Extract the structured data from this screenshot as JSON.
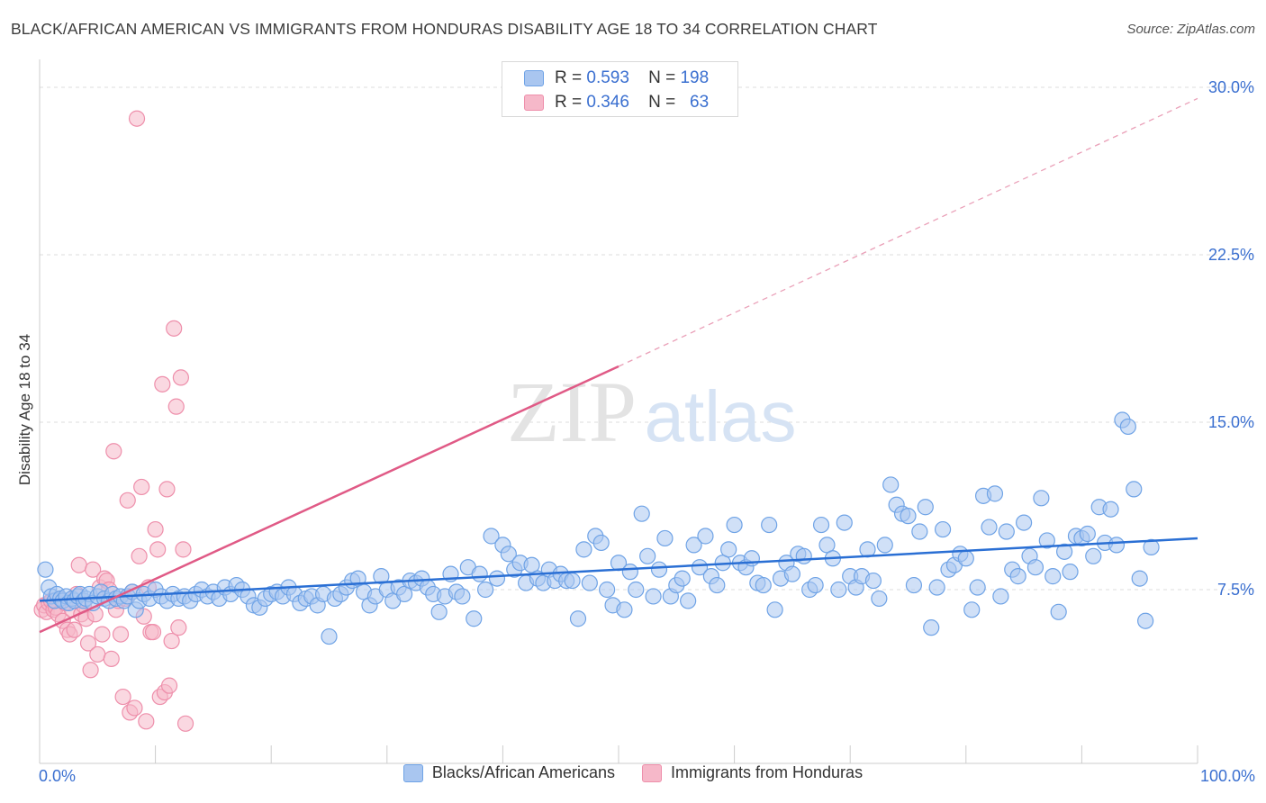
{
  "title": "BLACK/AFRICAN AMERICAN VS IMMIGRANTS FROM HONDURAS DISABILITY AGE 18 TO 34 CORRELATION CHART",
  "source": "Source: ZipAtlas.com",
  "watermark": {
    "zip": "ZIP",
    "atlas": "atlas"
  },
  "legend_top": [
    {
      "r_label": "R =",
      "r_value": "0.593",
      "n_label": "N =",
      "n_value": "198",
      "color": "#a9c6f0"
    },
    {
      "r_label": "R =",
      "r_value": "0.346",
      "n_label": "N =",
      "n_value": "63",
      "color": "#f6b8c9"
    }
  ],
  "chart_data": {
    "type": "scatter",
    "title": "BLACK/AFRICAN AMERICAN VS IMMIGRANTS FROM HONDURAS DISABILITY AGE 18 TO 34 CORRELATION CHART",
    "xlabel": "",
    "ylabel": "Disability Age 18 to 34",
    "xlim": [
      0,
      100
    ],
    "ylim": [
      0,
      31
    ],
    "x_tick_labels": [
      "0.0%",
      "100.0%"
    ],
    "y_ticks": [
      7.5,
      15.0,
      22.5,
      30.0
    ],
    "y_tick_labels": [
      "7.5%",
      "15.0%",
      "22.5%",
      "30.0%"
    ],
    "grid": true,
    "legend_position": "bottom",
    "series": [
      {
        "name": "Blacks/African Americans",
        "color": "#6fa3e6",
        "fill": "#a9c6f0",
        "trendline": {
          "x": [
            0,
            100
          ],
          "y": [
            7.0,
            9.8
          ],
          "color": "#2a6fd4"
        },
        "points": [
          [
            0.5,
            8.4
          ],
          [
            0.8,
            7.6
          ],
          [
            1.0,
            7.2
          ],
          [
            1.3,
            7.0
          ],
          [
            1.5,
            7.3
          ],
          [
            1.8,
            7.1
          ],
          [
            2.0,
            7.0
          ],
          [
            2.3,
            7.2
          ],
          [
            2.5,
            6.9
          ],
          [
            2.8,
            7.1
          ],
          [
            3.0,
            7.0
          ],
          [
            3.3,
            7.2
          ],
          [
            3.5,
            7.3
          ],
          [
            3.8,
            7.0
          ],
          [
            4.0,
            7.1
          ],
          [
            4.3,
            7.3
          ],
          [
            4.6,
            6.9
          ],
          [
            5.0,
            7.2
          ],
          [
            5.3,
            7.4
          ],
          [
            5.6,
            7.1
          ],
          [
            6.0,
            7.0
          ],
          [
            6.3,
            7.3
          ],
          [
            6.6,
            7.1
          ],
          [
            7.0,
            7.2
          ],
          [
            7.3,
            7.0
          ],
          [
            7.6,
            7.2
          ],
          [
            8.0,
            7.4
          ],
          [
            8.3,
            6.6
          ],
          [
            8.6,
            7.0
          ],
          [
            9.0,
            7.3
          ],
          [
            9.5,
            7.1
          ],
          [
            10.0,
            7.5
          ],
          [
            10.5,
            7.2
          ],
          [
            11.0,
            7.0
          ],
          [
            11.5,
            7.3
          ],
          [
            12.0,
            7.1
          ],
          [
            12.5,
            7.2
          ],
          [
            13.0,
            7.0
          ],
          [
            13.5,
            7.3
          ],
          [
            14.0,
            7.5
          ],
          [
            14.5,
            7.2
          ],
          [
            15.0,
            7.4
          ],
          [
            15.5,
            7.1
          ],
          [
            16.0,
            7.6
          ],
          [
            16.5,
            7.3
          ],
          [
            17.0,
            7.7
          ],
          [
            17.5,
            7.5
          ],
          [
            18.0,
            7.2
          ],
          [
            18.5,
            6.8
          ],
          [
            19.0,
            6.7
          ],
          [
            19.5,
            7.1
          ],
          [
            20.0,
            7.3
          ],
          [
            20.5,
            7.4
          ],
          [
            21.0,
            7.2
          ],
          [
            21.5,
            7.6
          ],
          [
            22.0,
            7.3
          ],
          [
            22.5,
            6.9
          ],
          [
            23.0,
            7.1
          ],
          [
            23.5,
            7.2
          ],
          [
            24.0,
            6.8
          ],
          [
            24.5,
            7.3
          ],
          [
            25.0,
            5.4
          ],
          [
            25.5,
            7.1
          ],
          [
            26.0,
            7.3
          ],
          [
            26.5,
            7.6
          ],
          [
            27.0,
            7.9
          ],
          [
            27.5,
            8.0
          ],
          [
            28.0,
            7.4
          ],
          [
            28.5,
            6.8
          ],
          [
            29.0,
            7.2
          ],
          [
            29.5,
            8.1
          ],
          [
            30.0,
            7.5
          ],
          [
            30.5,
            7.0
          ],
          [
            31.0,
            7.6
          ],
          [
            31.5,
            7.3
          ],
          [
            32.0,
            7.9
          ],
          [
            32.5,
            7.8
          ],
          [
            33.0,
            8.0
          ],
          [
            33.5,
            7.6
          ],
          [
            34.0,
            7.3
          ],
          [
            34.5,
            6.5
          ],
          [
            35.0,
            7.2
          ],
          [
            35.5,
            8.2
          ],
          [
            36.0,
            7.4
          ],
          [
            36.5,
            7.2
          ],
          [
            37.0,
            8.5
          ],
          [
            37.5,
            6.2
          ],
          [
            38.0,
            8.2
          ],
          [
            38.5,
            7.5
          ],
          [
            39.0,
            9.9
          ],
          [
            39.5,
            8.0
          ],
          [
            40.0,
            9.5
          ],
          [
            40.5,
            9.1
          ],
          [
            41.0,
            8.4
          ],
          [
            41.5,
            8.7
          ],
          [
            42.0,
            7.8
          ],
          [
            42.5,
            8.6
          ],
          [
            43.0,
            8.0
          ],
          [
            43.5,
            7.8
          ],
          [
            44.0,
            8.4
          ],
          [
            44.5,
            7.9
          ],
          [
            45.0,
            8.2
          ],
          [
            45.5,
            7.9
          ],
          [
            46.0,
            7.9
          ],
          [
            46.5,
            6.2
          ],
          [
            47.0,
            9.3
          ],
          [
            47.5,
            7.8
          ],
          [
            48.0,
            9.9
          ],
          [
            48.5,
            9.6
          ],
          [
            49.0,
            7.5
          ],
          [
            49.5,
            6.8
          ],
          [
            50.0,
            8.7
          ],
          [
            50.5,
            6.6
          ],
          [
            51.0,
            8.3
          ],
          [
            51.5,
            7.5
          ],
          [
            52.0,
            10.9
          ],
          [
            52.5,
            9.0
          ],
          [
            53.0,
            7.2
          ],
          [
            53.5,
            8.4
          ],
          [
            54.0,
            9.8
          ],
          [
            54.5,
            7.2
          ],
          [
            55.0,
            7.7
          ],
          [
            55.5,
            8.0
          ],
          [
            56.0,
            7.0
          ],
          [
            56.5,
            9.5
          ],
          [
            57.0,
            8.5
          ],
          [
            57.5,
            9.9
          ],
          [
            58.0,
            8.1
          ],
          [
            58.5,
            7.7
          ],
          [
            59.0,
            8.7
          ],
          [
            59.5,
            9.3
          ],
          [
            60.0,
            10.4
          ],
          [
            60.5,
            8.7
          ],
          [
            61.0,
            8.5
          ],
          [
            61.5,
            8.9
          ],
          [
            62.0,
            7.8
          ],
          [
            62.5,
            7.7
          ],
          [
            63.0,
            10.4
          ],
          [
            63.5,
            6.6
          ],
          [
            64.0,
            8.0
          ],
          [
            64.5,
            8.7
          ],
          [
            65.0,
            8.2
          ],
          [
            65.5,
            9.1
          ],
          [
            66.0,
            9.0
          ],
          [
            66.5,
            7.5
          ],
          [
            67.0,
            7.7
          ],
          [
            67.5,
            10.4
          ],
          [
            68.0,
            9.5
          ],
          [
            68.5,
            8.9
          ],
          [
            69.0,
            7.5
          ],
          [
            69.5,
            10.5
          ],
          [
            70.0,
            8.1
          ],
          [
            70.5,
            7.6
          ],
          [
            71.0,
            8.1
          ],
          [
            71.5,
            9.3
          ],
          [
            72.0,
            7.9
          ],
          [
            72.5,
            7.1
          ],
          [
            73.0,
            9.5
          ],
          [
            73.5,
            12.2
          ],
          [
            74.0,
            11.3
          ],
          [
            74.5,
            10.9
          ],
          [
            75.0,
            10.8
          ],
          [
            75.5,
            7.7
          ],
          [
            76.0,
            10.1
          ],
          [
            76.5,
            11.2
          ],
          [
            77.0,
            5.8
          ],
          [
            77.5,
            7.6
          ],
          [
            78.0,
            10.2
          ],
          [
            78.5,
            8.4
          ],
          [
            79.0,
            8.6
          ],
          [
            79.5,
            9.1
          ],
          [
            80.0,
            8.9
          ],
          [
            80.5,
            6.6
          ],
          [
            81.0,
            7.6
          ],
          [
            81.5,
            11.7
          ],
          [
            82.0,
            10.3
          ],
          [
            82.5,
            11.8
          ],
          [
            83.0,
            7.2
          ],
          [
            83.5,
            10.1
          ],
          [
            84.0,
            8.4
          ],
          [
            84.5,
            8.1
          ],
          [
            85.0,
            10.5
          ],
          [
            85.5,
            9.0
          ],
          [
            86.0,
            8.5
          ],
          [
            86.5,
            11.6
          ],
          [
            87.0,
            9.7
          ],
          [
            87.5,
            8.1
          ],
          [
            88.0,
            6.5
          ],
          [
            88.5,
            9.2
          ],
          [
            89.0,
            8.3
          ],
          [
            89.5,
            9.9
          ],
          [
            90.0,
            9.8
          ],
          [
            90.5,
            10.0
          ],
          [
            91.0,
            9.0
          ],
          [
            91.5,
            11.2
          ],
          [
            92.0,
            9.6
          ],
          [
            92.5,
            11.1
          ],
          [
            93.0,
            9.5
          ],
          [
            93.5,
            15.1
          ],
          [
            94.0,
            14.8
          ],
          [
            94.5,
            12.0
          ],
          [
            95.0,
            8.0
          ],
          [
            95.5,
            6.1
          ],
          [
            96.0,
            9.4
          ]
        ]
      },
      {
        "name": "Immigrants from Honduras",
        "color": "#ee8fab",
        "fill": "#f6b8c9",
        "trendline": {
          "x": [
            0,
            50
          ],
          "y": [
            5.6,
            17.5
          ],
          "dash_to": [
            100,
            29.5
          ],
          "color": "#e05a86"
        },
        "points": [
          [
            0.2,
            6.6
          ],
          [
            0.4,
            6.8
          ],
          [
            0.6,
            6.5
          ],
          [
            0.8,
            6.9
          ],
          [
            1.0,
            7.0
          ],
          [
            1.2,
            6.6
          ],
          [
            1.4,
            6.7
          ],
          [
            1.6,
            6.4
          ],
          [
            1.8,
            7.1
          ],
          [
            2.0,
            6.1
          ],
          [
            2.2,
            6.9
          ],
          [
            2.4,
            5.7
          ],
          [
            2.6,
            5.5
          ],
          [
            2.8,
            6.6
          ],
          [
            3.0,
            5.7
          ],
          [
            3.2,
            7.3
          ],
          [
            3.4,
            8.6
          ],
          [
            3.6,
            6.4
          ],
          [
            3.8,
            6.8
          ],
          [
            4.0,
            6.2
          ],
          [
            4.2,
            5.1
          ],
          [
            4.4,
            3.9
          ],
          [
            4.6,
            8.4
          ],
          [
            4.8,
            6.4
          ],
          [
            5.0,
            4.6
          ],
          [
            5.2,
            7.6
          ],
          [
            5.4,
            5.5
          ],
          [
            5.6,
            8.0
          ],
          [
            5.8,
            7.9
          ],
          [
            6.0,
            7.5
          ],
          [
            6.2,
            4.4
          ],
          [
            6.4,
            13.7
          ],
          [
            6.6,
            6.6
          ],
          [
            6.8,
            7.0
          ],
          [
            7.0,
            5.5
          ],
          [
            7.2,
            2.7
          ],
          [
            7.4,
            7.1
          ],
          [
            7.6,
            11.5
          ],
          [
            7.8,
            2.0
          ],
          [
            8.0,
            7.4
          ],
          [
            8.2,
            2.2
          ],
          [
            8.4,
            28.6
          ],
          [
            8.6,
            9.0
          ],
          [
            8.8,
            12.1
          ],
          [
            9.0,
            6.3
          ],
          [
            9.2,
            1.6
          ],
          [
            9.4,
            7.6
          ],
          [
            9.6,
            5.6
          ],
          [
            9.8,
            5.6
          ],
          [
            10.0,
            10.2
          ],
          [
            10.2,
            9.3
          ],
          [
            10.4,
            2.7
          ],
          [
            10.6,
            16.7
          ],
          [
            10.8,
            2.9
          ],
          [
            11.0,
            12.0
          ],
          [
            11.2,
            3.2
          ],
          [
            11.4,
            5.2
          ],
          [
            11.6,
            19.2
          ],
          [
            11.8,
            15.7
          ],
          [
            12.0,
            5.8
          ],
          [
            12.2,
            17.0
          ],
          [
            12.4,
            9.3
          ],
          [
            12.6,
            1.5
          ]
        ]
      }
    ]
  }
}
